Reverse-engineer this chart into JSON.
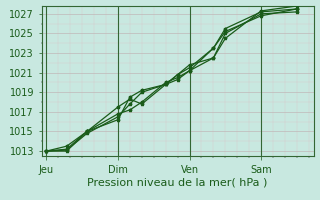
{
  "title": "",
  "xlabel": "Pression niveau de la mer( hPa )",
  "ylabel": "",
  "bg_color": "#c8e8e0",
  "plot_bg_color": "#c8e8e0",
  "grid_major_color": "#c0b8b8",
  "grid_minor_color": "#d8c8c8",
  "line_color": "#1a5c1a",
  "vline_color": "#336633",
  "ylim": [
    1012.5,
    1027.8
  ],
  "yticks": [
    1013,
    1015,
    1017,
    1019,
    1021,
    1023,
    1025,
    1027
  ],
  "day_positions": [
    0.0,
    3.0,
    6.0,
    9.0
  ],
  "day_labels": [
    "Jeu",
    "Dim",
    "Ven",
    "Sam"
  ],
  "xlim": [
    -0.2,
    11.2
  ],
  "lines": [
    [
      1013.0,
      1013.5,
      1015.0,
      1017.5,
      1018.3,
      1017.8,
      1019.8,
      1020.3,
      1021.2,
      1023.5,
      1025.5,
      1027.2,
      1027.5
    ],
    [
      1013.0,
      1013.2,
      1015.0,
      1016.2,
      1018.5,
      1019.2,
      1019.8,
      1020.8,
      1021.8,
      1022.5,
      1025.0,
      1027.0,
      1027.2
    ],
    [
      1013.0,
      1013.1,
      1014.8,
      1016.5,
      1017.8,
      1019.0,
      1019.8,
      1020.8,
      1021.5,
      1023.5,
      1025.2,
      1026.8,
      1027.5
    ],
    [
      1013.0,
      1013.0,
      1015.0,
      1016.8,
      1017.2,
      1018.0,
      1020.0,
      1020.5,
      1021.2,
      1022.5,
      1024.5,
      1027.3,
      1027.8
    ]
  ],
  "x_points": [
    0,
    0.85,
    1.7,
    3.0,
    3.5,
    4.0,
    5.0,
    5.5,
    6.0,
    7.0,
    7.5,
    9.0,
    10.5
  ],
  "xlabel_fontsize": 8,
  "tick_fontsize": 7,
  "line_width": 0.9,
  "marker_size": 2.5
}
